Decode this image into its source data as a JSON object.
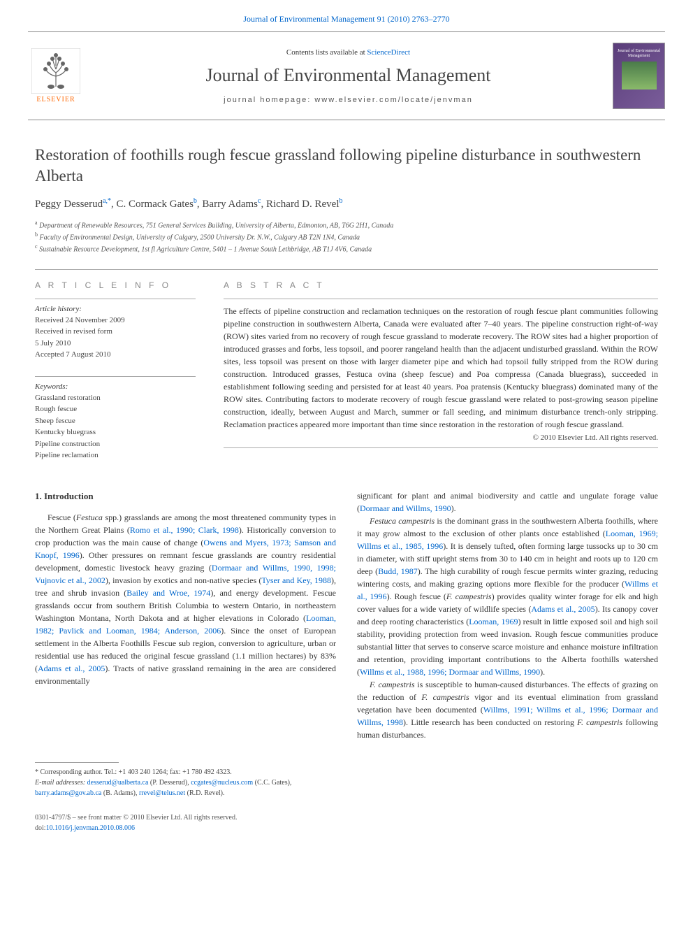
{
  "header": {
    "top_citation_prefix": "Journal of Environmental Management 91 (2010) 2763–2770",
    "top_link": "Journal of Environmental Management 91 (2010) 2763–2770",
    "contents_prefix": "Contents lists available at ",
    "contents_link": "ScienceDirect",
    "journal_name": "Journal of Environmental Management",
    "homepage_label": "journal homepage: www.elsevier.com/locate/jenvman",
    "publisher": "ELSEVIER",
    "cover_text": "Journal of Environmental Management"
  },
  "title": "Restoration of foothills rough fescue grassland following pipeline disturbance in southwestern Alberta",
  "authors": [
    {
      "name": "Peggy Desserud",
      "affil": "a,",
      "corr": "*"
    },
    {
      "name": "C. Cormack Gates",
      "affil": "b"
    },
    {
      "name": "Barry Adams",
      "affil": "c"
    },
    {
      "name": "Richard D. Revel",
      "affil": "b"
    }
  ],
  "affiliations": [
    {
      "key": "a",
      "text": "Department of Renewable Resources, 751 General Services Building, University of Alberta, Edmonton, AB, T6G 2H1, Canada"
    },
    {
      "key": "b",
      "text": "Faculty of Environmental Design, University of Calgary, 2500 University Dr. N.W., Calgary AB T2N 1N4, Canada"
    },
    {
      "key": "c",
      "text": "Sustainable Resource Development, 1st fl Agriculture Centre, 5401 – 1 Avenue South Lethbridge, AB T1J 4V6, Canada"
    }
  ],
  "article_info": {
    "heading": "A R T I C L E   I N F O",
    "history_label": "Article history:",
    "history": [
      "Received 24 November 2009",
      "Received in revised form",
      "5 July 2010",
      "Accepted 7 August 2010"
    ],
    "keywords_label": "Keywords:",
    "keywords": [
      "Grassland restoration",
      "Rough fescue",
      "Sheep fescue",
      "Kentucky bluegrass",
      "Pipeline construction",
      "Pipeline reclamation"
    ]
  },
  "abstract": {
    "heading": "A B S T R A C T",
    "text": "The effects of pipeline construction and reclamation techniques on the restoration of rough fescue plant communities following pipeline construction in southwestern Alberta, Canada were evaluated after 7–40 years. The pipeline construction right-of-way (ROW) sites varied from no recovery of rough fescue grassland to moderate recovery. The ROW sites had a higher proportion of introduced grasses and forbs, less topsoil, and poorer rangeland health than the adjacent undisturbed grassland. Within the ROW sites, less topsoil was present on those with larger diameter pipe and which had topsoil fully stripped from the ROW during construction. Introduced grasses, Festuca ovina (sheep fescue) and Poa compressa (Canada bluegrass), succeeded in establishment following seeding and persisted for at least 40 years. Poa pratensis (Kentucky bluegrass) dominated many of the ROW sites. Contributing factors to moderate recovery of rough fescue grassland were related to post-growing season pipeline construction, ideally, between August and March, summer or fall seeding, and minimum disturbance trench-only stripping. Reclamation practices appeared more important than time since restoration in the restoration of rough fescue grassland.",
    "copyright": "© 2010 Elsevier Ltd. All rights reserved."
  },
  "section1": {
    "heading": "1.  Introduction",
    "col1_html": "Fescue (<span class='italic'>Festuca</span> spp.) grasslands are among the most threatened community types in the Northern Great Plains (<a class='ref-link' href='#'>Romo et al., 1990; Clark, 1998</a>). Historically conversion to crop production was the main cause of change (<a class='ref-link' href='#'>Owens and Myers, 1973; Samson and Knopf, 1996</a>). Other pressures on remnant fescue grasslands are country residential development, domestic livestock heavy grazing (<a class='ref-link' href='#'>Dormaar and Willms, 1990, 1998; Vujnovic et al., 2002</a>), invasion by exotics and non-native species (<a class='ref-link' href='#'>Tyser and Key, 1988</a>), tree and shrub invasion (<a class='ref-link' href='#'>Bailey and Wroe, 1974</a>), and energy development. Fescue grasslands occur from southern British Columbia to western Ontario, in northeastern Washington Montana, North Dakota and at higher elevations in Colorado (<a class='ref-link' href='#'>Looman, 1982; Pavlick and Looman, 1984; Anderson, 2006</a>). Since the onset of European settlement in the Alberta Foothills Fescue sub region, conversion to agriculture, urban or residential use has reduced the original fescue grassland (1.1 million hectares) by 83% (<a class='ref-link' href='#'>Adams et al., 2005</a>). Tracts of native grassland remaining in the area are considered environmentally",
    "col2_p1_html": "significant for plant and animal biodiversity and cattle and ungulate forage value (<a class='ref-link' href='#'>Dormaar and Willms, 1990</a>).",
    "col2_p2_html": "<span class='italic'>Festuca campestris</span> is the dominant grass in the southwestern Alberta foothills, where it may grow almost to the exclusion of other plants once established (<a class='ref-link' href='#'>Looman, 1969; Willms et al., 1985, 1996</a>). It is densely tufted, often forming large tussocks up to 30 cm in diameter, with stiff upright stems from 30 to 140 cm in height and roots up to 120 cm deep (<a class='ref-link' href='#'>Budd, 1987</a>). The high curability of rough fescue permits winter grazing, reducing wintering costs, and making grazing options more flexible for the producer (<a class='ref-link' href='#'>Willms et al., 1996</a>). Rough fescue (<span class='italic'>F. campestris</span>) provides quality winter forage for elk and high cover values for a wide variety of wildlife species (<a class='ref-link' href='#'>Adams et al., 2005</a>). Its canopy cover and deep rooting characteristics (<a class='ref-link' href='#'>Looman, 1969</a>) result in little exposed soil and high soil stability, providing protection from weed invasion. Rough fescue communities produce substantial litter that serves to conserve scarce moisture and enhance moisture infiltration and retention, providing important contributions to the Alberta foothills watershed (<a class='ref-link' href='#'>Willms et al., 1988, 1996; Dormaar and Willms, 1990</a>).",
    "col2_p3_html": "<span class='italic'>F. campestris</span> is susceptible to human-caused disturbances. The effects of grazing on the reduction of <span class='italic'>F. campestris</span> vigor and its eventual elimination from grassland vegetation have been documented (<a class='ref-link' href='#'>Willms, 1991; Willms et al., 1996; Dormaar and Willms, 1998</a>). Little research has been conducted on restoring <span class='italic'>F. campestris</span> following human disturbances."
  },
  "footnotes": {
    "corr": "* Corresponding author. Tel.: +1 403 240 1264; fax: +1 780 492 4323.",
    "email_label": "E-mail addresses:",
    "emails": [
      {
        "addr": "desserud@ualberta.ca",
        "who": "(P. Desserud)"
      },
      {
        "addr": "ccgates@nucleus.com",
        "who": "(C.C. Gates)"
      },
      {
        "addr": "barry.adams@gov.ab.ca",
        "who": "(B. Adams)"
      },
      {
        "addr": "rrevel@telus.net",
        "who": "(R.D. Revel)"
      }
    ]
  },
  "bottom": {
    "line1": "0301-4797/$ – see front matter © 2010 Elsevier Ltd. All rights reserved.",
    "doi_prefix": "doi:",
    "doi": "10.1016/j.jenvman.2010.08.006"
  },
  "colors": {
    "link": "#0066cc",
    "text": "#333333",
    "muted": "#888888",
    "elsevier_orange": "#ff6600",
    "cover_bg_start": "#5a3d7a",
    "cover_bg_end": "#7a5d9a"
  }
}
